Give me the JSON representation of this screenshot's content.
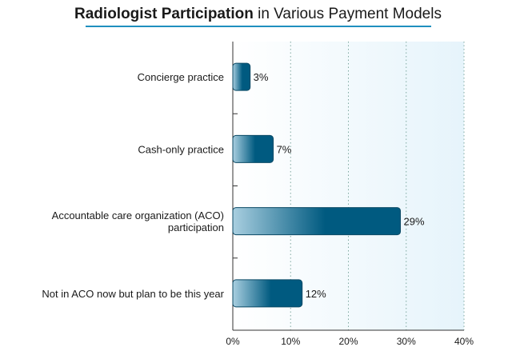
{
  "title": {
    "bold_part": "Radiologist Participation",
    "rest": " in Various Payment Models"
  },
  "colors": {
    "bar_dark": "#005a80",
    "bar_light": "#a9cfe0",
    "plot_bg_left": "#ffffff",
    "plot_bg_right": "#e6f4fb",
    "title_rule": "#1f8fbf",
    "grid": "#7fa8a0"
  },
  "chart_data": {
    "type": "bar",
    "orientation": "horizontal",
    "title": "Radiologist Participation in Various Payment Models",
    "categories": [
      [
        "Concierge practice"
      ],
      [
        "Cash-only practice"
      ],
      [
        "Accountable care organization (ACO)",
        "participation"
      ],
      [
        "Not in ACO now but plan to be this year"
      ]
    ],
    "values": [
      3,
      7,
      29,
      12
    ],
    "value_labels": [
      "3%",
      "7%",
      "29%",
      "12%"
    ],
    "xlim": [
      0,
      40
    ],
    "xticks": [
      0,
      10,
      20,
      30,
      40
    ],
    "xtick_labels": [
      "0%",
      "10%",
      "20%",
      "30%",
      "40%"
    ],
    "grid": "vertical dotted",
    "legend": "none"
  }
}
